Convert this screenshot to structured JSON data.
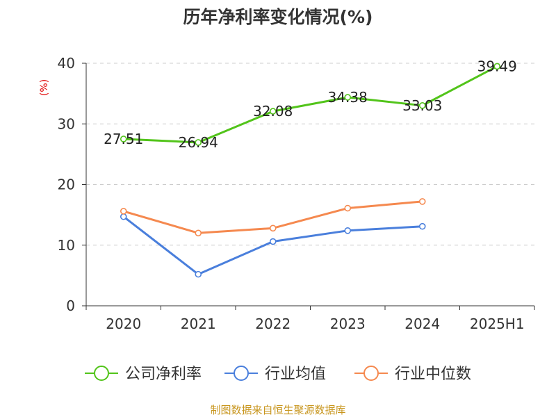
{
  "chart_data": {
    "type": "line",
    "title": "历年净利率变化情况(%)",
    "ylabel": "(%)",
    "xlabel": "",
    "categories": [
      "2020",
      "2021",
      "2022",
      "2023",
      "2024",
      "2025H1"
    ],
    "ylim": [
      0,
      40
    ],
    "yticks": [
      0,
      10,
      20,
      30,
      40
    ],
    "grid": true,
    "legend_position": "bottom",
    "series": [
      {
        "name": "公司净利率",
        "color": "#52c41a",
        "values": [
          27.51,
          26.94,
          32.08,
          34.38,
          33.03,
          39.49
        ],
        "labels": [
          "27.51",
          "26.94",
          "32.08",
          "34.38",
          "33.03",
          "39.49"
        ]
      },
      {
        "name": "行业均值",
        "color": "#4a7fdc",
        "values": [
          14.7,
          5.2,
          10.6,
          12.4,
          13.1,
          null
        ]
      },
      {
        "name": "行业中位数",
        "color": "#f5894f",
        "values": [
          15.6,
          12.0,
          12.8,
          16.1,
          17.2,
          null
        ]
      }
    ]
  },
  "source_text": "制图数据来自恒生聚源数据库"
}
